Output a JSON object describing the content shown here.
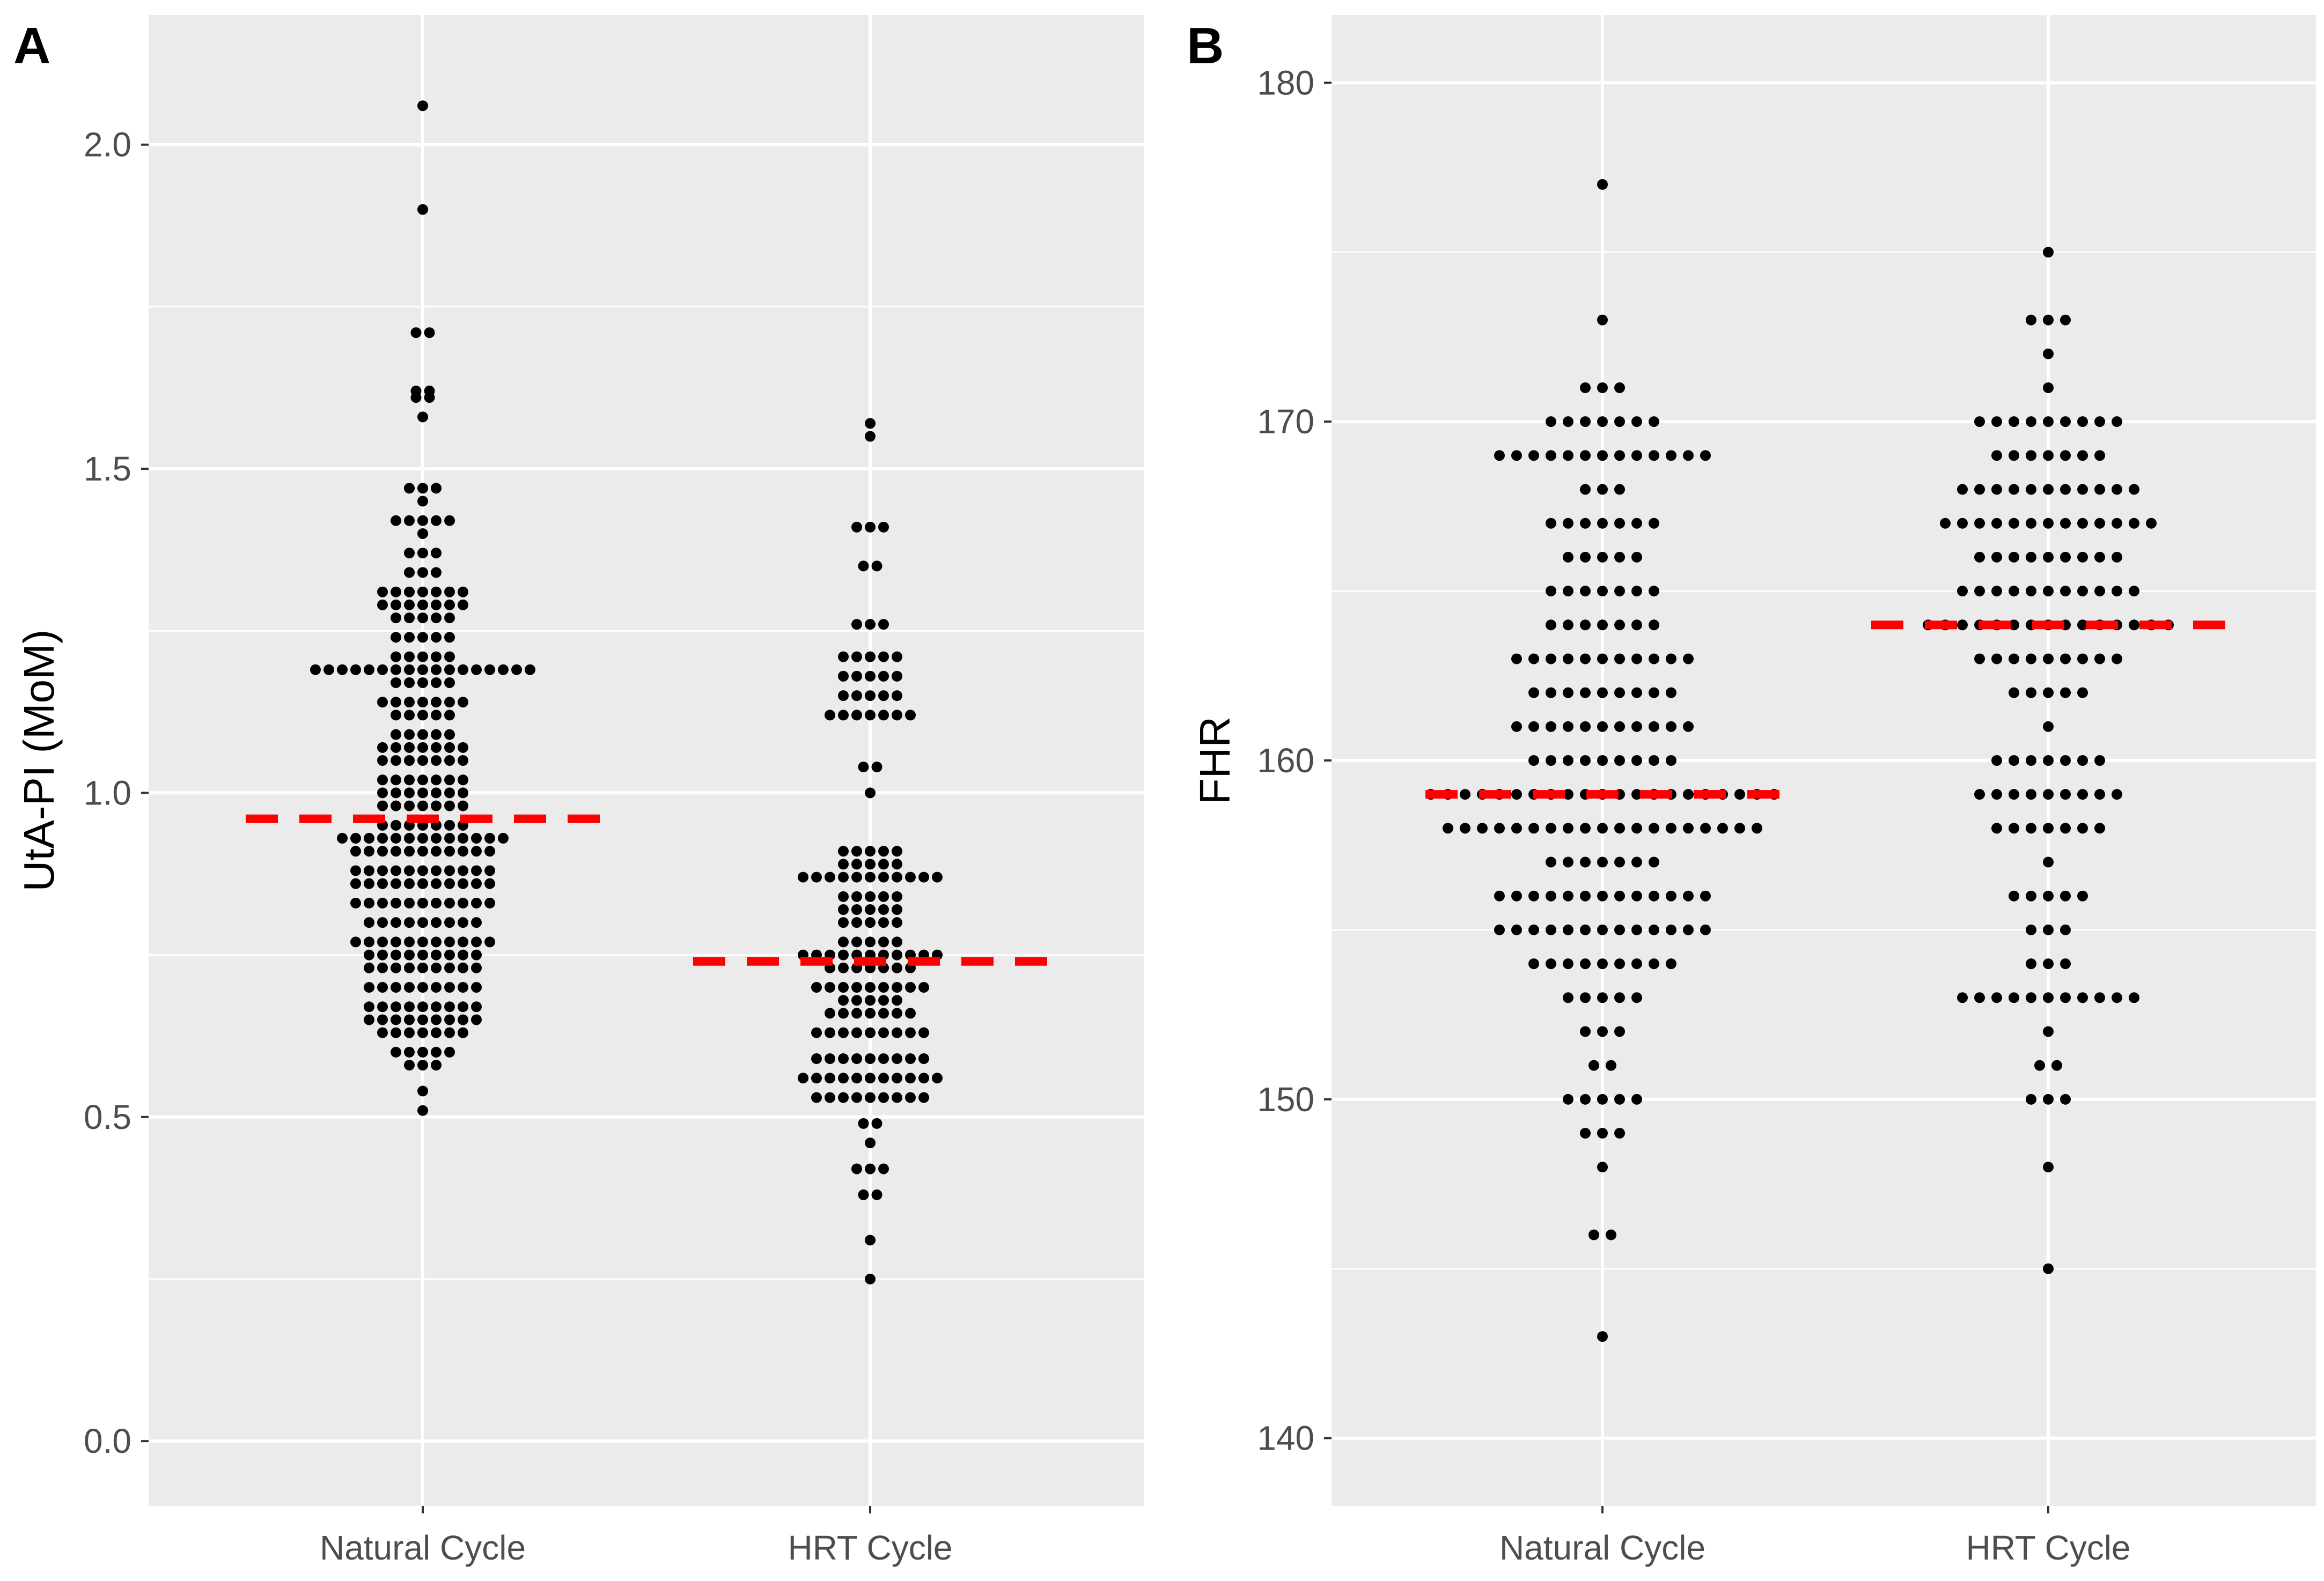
{
  "chart_data": [
    {
      "type": "dotplot",
      "panel_label": "A",
      "title": "",
      "xlabel": "",
      "ylabel": "UtA-PI (MoM)",
      "ylim": [
        -0.1,
        2.2
      ],
      "yticks": [
        0.0,
        0.5,
        1.0,
        1.5,
        2.0
      ],
      "ytick_labels": [
        "0.0",
        "0.5",
        "1.0",
        "1.5",
        "2.0"
      ],
      "categories": [
        "Natural Cycle",
        "HRT Cycle"
      ],
      "grid": true,
      "median_line_color": "#FF0000",
      "point_color": "#000000",
      "series": [
        {
          "name": "Natural Cycle",
          "median": 0.96,
          "bins": [
            [
              0.51,
              1
            ],
            [
              0.54,
              1
            ],
            [
              0.58,
              3
            ],
            [
              0.6,
              5
            ],
            [
              0.63,
              7
            ],
            [
              0.65,
              9
            ],
            [
              0.67,
              9
            ],
            [
              0.7,
              9
            ],
            [
              0.73,
              9
            ],
            [
              0.75,
              9
            ],
            [
              0.77,
              11
            ],
            [
              0.8,
              9
            ],
            [
              0.83,
              11
            ],
            [
              0.86,
              11
            ],
            [
              0.88,
              11
            ],
            [
              0.91,
              11
            ],
            [
              0.93,
              13
            ],
            [
              0.95,
              7
            ],
            [
              0.98,
              7
            ],
            [
              1.0,
              7
            ],
            [
              1.02,
              7
            ],
            [
              1.05,
              7
            ],
            [
              1.07,
              7
            ],
            [
              1.09,
              5
            ],
            [
              1.12,
              5
            ],
            [
              1.14,
              7
            ],
            [
              1.17,
              5
            ],
            [
              1.19,
              17
            ],
            [
              1.21,
              5
            ],
            [
              1.24,
              5
            ],
            [
              1.27,
              5
            ],
            [
              1.29,
              7
            ],
            [
              1.31,
              7
            ],
            [
              1.34,
              3
            ],
            [
              1.37,
              3
            ],
            [
              1.4,
              1
            ],
            [
              1.42,
              5
            ],
            [
              1.45,
              1
            ],
            [
              1.47,
              3
            ],
            [
              1.58,
              1
            ],
            [
              1.61,
              2
            ],
            [
              1.62,
              2
            ],
            [
              1.71,
              2
            ],
            [
              1.9,
              1
            ],
            [
              2.06,
              1
            ]
          ]
        },
        {
          "name": "HRT Cycle",
          "median": 0.74,
          "bins": [
            [
              0.25,
              1
            ],
            [
              0.31,
              1
            ],
            [
              0.38,
              2
            ],
            [
              0.42,
              3
            ],
            [
              0.46,
              1
            ],
            [
              0.49,
              2
            ],
            [
              0.53,
              9
            ],
            [
              0.56,
              11
            ],
            [
              0.59,
              9
            ],
            [
              0.63,
              9
            ],
            [
              0.66,
              7
            ],
            [
              0.68,
              5
            ],
            [
              0.7,
              9
            ],
            [
              0.73,
              7
            ],
            [
              0.75,
              11
            ],
            [
              0.77,
              5
            ],
            [
              0.8,
              5
            ],
            [
              0.82,
              5
            ],
            [
              0.84,
              5
            ],
            [
              0.87,
              11
            ],
            [
              0.89,
              5
            ],
            [
              0.91,
              5
            ],
            [
              1.0,
              1
            ],
            [
              1.04,
              2
            ],
            [
              1.12,
              7
            ],
            [
              1.15,
              5
            ],
            [
              1.18,
              5
            ],
            [
              1.21,
              5
            ],
            [
              1.26,
              3
            ],
            [
              1.35,
              2
            ],
            [
              1.41,
              3
            ],
            [
              1.55,
              1
            ],
            [
              1.57,
              1
            ]
          ]
        }
      ]
    },
    {
      "type": "dotplot",
      "panel_label": "B",
      "title": "",
      "xlabel": "",
      "ylabel": "FHR",
      "ylim": [
        138,
        182
      ],
      "yticks": [
        140,
        150,
        160,
        170,
        180
      ],
      "ytick_labels": [
        "140",
        "150",
        "160",
        "170",
        "180"
      ],
      "categories": [
        "Natural Cycle",
        "HRT Cycle"
      ],
      "grid": true,
      "median_line_color": "#FF0000",
      "point_color": "#000000",
      "series": [
        {
          "name": "Natural Cycle",
          "median": 159,
          "bins": [
            [
              143,
              1
            ],
            [
              146,
              2
            ],
            [
              148,
              1
            ],
            [
              149,
              3
            ],
            [
              150,
              5
            ],
            [
              151,
              2
            ],
            [
              152,
              3
            ],
            [
              153,
              5
            ],
            [
              154,
              9
            ],
            [
              155,
              13
            ],
            [
              156,
              13
            ],
            [
              157,
              7
            ],
            [
              158,
              19
            ],
            [
              159,
              21
            ],
            [
              160,
              9
            ],
            [
              161,
              11
            ],
            [
              162,
              9
            ],
            [
              163,
              11
            ],
            [
              164,
              7
            ],
            [
              165,
              7
            ],
            [
              166,
              5
            ],
            [
              167,
              7
            ],
            [
              168,
              3
            ],
            [
              169,
              13
            ],
            [
              170,
              7
            ],
            [
              171,
              3
            ],
            [
              173,
              1
            ],
            [
              177,
              1
            ]
          ]
        },
        {
          "name": "HRT Cycle",
          "median": 164,
          "bins": [
            [
              145,
              1
            ],
            [
              148,
              1
            ],
            [
              150,
              3
            ],
            [
              151,
              2
            ],
            [
              152,
              1
            ],
            [
              153,
              11
            ],
            [
              154,
              3
            ],
            [
              155,
              3
            ],
            [
              156,
              5
            ],
            [
              157,
              1
            ],
            [
              158,
              7
            ],
            [
              159,
              9
            ],
            [
              160,
              7
            ],
            [
              161,
              1
            ],
            [
              162,
              5
            ],
            [
              163,
              9
            ],
            [
              164,
              15
            ],
            [
              165,
              11
            ],
            [
              166,
              9
            ],
            [
              167,
              13
            ],
            [
              168,
              11
            ],
            [
              169,
              7
            ],
            [
              170,
              9
            ],
            [
              171,
              1
            ],
            [
              172,
              1
            ],
            [
              173,
              3
            ],
            [
              175,
              1
            ]
          ]
        }
      ]
    }
  ]
}
